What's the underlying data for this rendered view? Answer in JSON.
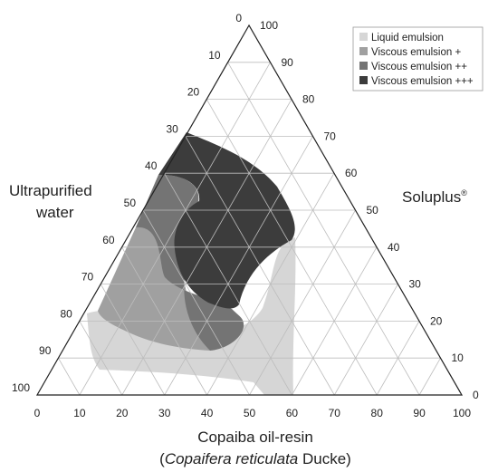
{
  "diagram": {
    "type": "ternary phase diagram",
    "axes": {
      "bottom": {
        "title_main": "Copaiba oil-resin",
        "title_sub_open": "(",
        "title_sub_italic": "Copaifera reticulata",
        "title_sub_tail": " Ducke)",
        "ticks": [
          "0",
          "10",
          "20",
          "30",
          "40",
          "50",
          "60",
          "70",
          "80",
          "90",
          "100"
        ]
      },
      "left": {
        "title_line1": "Ultrapurified",
        "title_line2": "water",
        "ticks": [
          "0",
          "10",
          "20",
          "30",
          "40",
          "50",
          "60",
          "70",
          "80",
          "90",
          "100"
        ]
      },
      "right": {
        "title": "Soluplus",
        "title_sup": "®",
        "ticks": [
          "0",
          "10",
          "20",
          "30",
          "40",
          "50",
          "60",
          "70",
          "80",
          "90",
          "100"
        ]
      }
    },
    "legend": {
      "position": "top-right",
      "items": [
        {
          "label": "Liquid emulsion",
          "color": "#d6d6d6"
        },
        {
          "label": "Viscous emulsion +",
          "color": "#a0a0a0"
        },
        {
          "label": "Viscous emulsion ++",
          "color": "#747474"
        },
        {
          "label": "Viscous emulsion +++",
          "color": "#3c3c3c"
        }
      ]
    },
    "gridlines": true,
    "grid_step": 10
  }
}
